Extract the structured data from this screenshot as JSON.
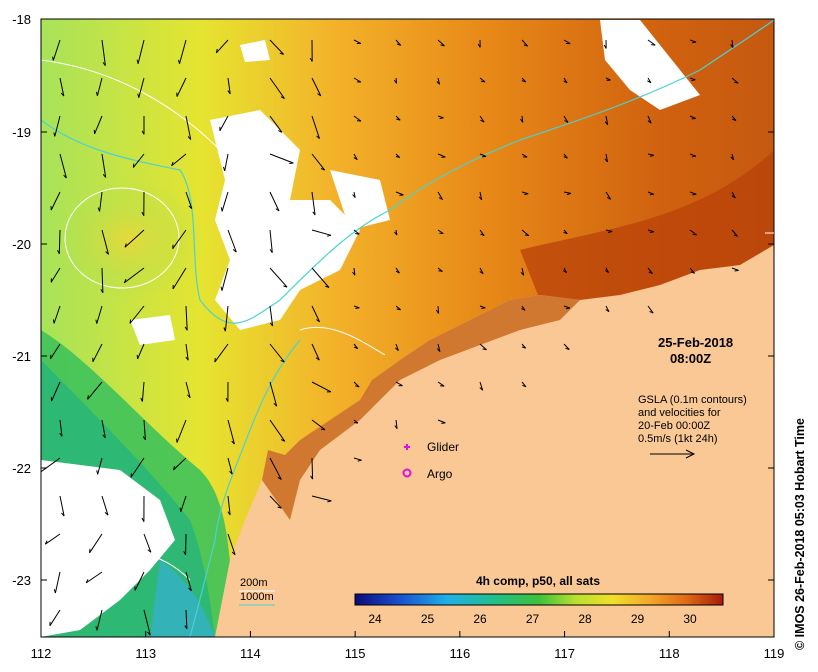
{
  "map": {
    "x_ticks": [
      "112",
      "113",
      "114",
      "115",
      "116",
      "117",
      "118",
      "119"
    ],
    "y_ticks": [
      "-18",
      "-19",
      "-20",
      "-21",
      "-22",
      "-23"
    ],
    "date": "25-Feb-2018",
    "time": "08:00Z",
    "gsla_lines": [
      "GSLA (0.1m contours)",
      "and velocities for",
      "20-Feb 00:00Z",
      "0.5m/s (1kt 24h)"
    ],
    "legend_glider": "Glider",
    "legend_argo": "Argo",
    "contour_200": "200m",
    "contour_1000": "1000m",
    "colorbar_title": "4h comp, p50, all sats",
    "colorbar_ticks": [
      "24",
      "25",
      "26",
      "27",
      "28",
      "29",
      "30"
    ],
    "copyright": "© IMOS 26-Feb-2018 05:03 Hobart Time",
    "colors": {
      "land": "#f9c895",
      "glider": "#e010e0",
      "argo": "#e010e0",
      "isobath_1000": "#4ad2d2",
      "isobath_200": "#ffffff"
    }
  }
}
